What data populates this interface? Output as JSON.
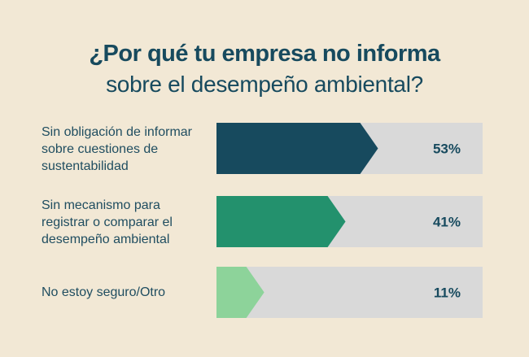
{
  "chart_data": {
    "type": "bar",
    "title": "¿Por qué tu empresa no informa",
    "subtitle": "sobre el desempeño ambiental?",
    "categories": [
      "Sin obligación de informar sobre cuestiones de sustentabilidad",
      "Sin mecanismo para registrar o comparar el desempeño ambiental",
      "No estoy seguro/Otro"
    ],
    "category_lines": [
      [
        "Sin obligación de informar",
        "sobre cuestiones de",
        "sustentabilidad"
      ],
      [
        "Sin mecanismo para",
        "registrar o comparar el",
        "desempeño ambiental"
      ],
      [
        "No estoy seguro/Otro"
      ]
    ],
    "values": [
      53,
      41,
      11
    ],
    "value_labels": [
      "53%",
      "41%",
      "11%"
    ],
    "colors": [
      "#174a5e",
      "#23916d",
      "#8dd39a"
    ],
    "track_color": "#d9d9d9",
    "xlim": [
      0,
      100
    ],
    "orientation": "horizontal"
  }
}
